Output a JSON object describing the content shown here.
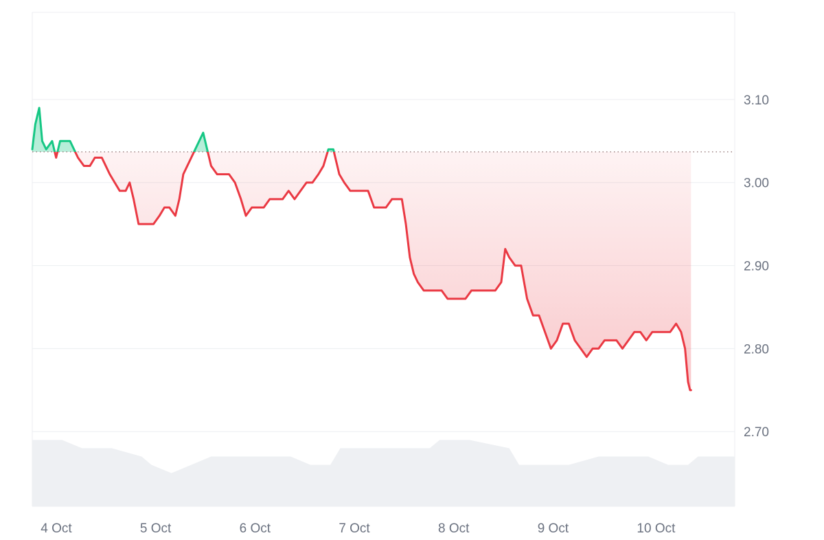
{
  "chart_data": {
    "type": "area",
    "title": "",
    "xlabel": "",
    "ylabel": "",
    "baseline": 3.037,
    "ylim": [
      2.61,
      3.205
    ],
    "y_ticks": [
      {
        "value": 3.1,
        "label": "3.10"
      },
      {
        "value": 3.0,
        "label": "3.00"
      },
      {
        "value": 2.9,
        "label": "2.90"
      },
      {
        "value": 2.8,
        "label": "2.80"
      },
      {
        "value": 2.7,
        "label": "2.70"
      }
    ],
    "x_ticks": [
      {
        "day": 0.05,
        "label": "4 Oct"
      },
      {
        "day": 1.05,
        "label": "5 Oct"
      },
      {
        "day": 2.05,
        "label": "6 Oct"
      },
      {
        "day": 3.05,
        "label": "7 Oct"
      },
      {
        "day": 4.05,
        "label": "8 Oct"
      },
      {
        "day": 5.05,
        "label": "9 Oct"
      },
      {
        "day": 6.05,
        "label": "10 Oct"
      }
    ],
    "xlim": [
      0,
      7.07
    ],
    "grid": true,
    "colors": {
      "above": "#16c784",
      "below": "#ea3943",
      "volume": "#eef0f3",
      "grid": "#eceef1",
      "baseline": "#8a6a6a"
    },
    "price": [
      [
        0.0,
        3.04
      ],
      [
        0.03,
        3.07
      ],
      [
        0.07,
        3.09
      ],
      [
        0.1,
        3.05
      ],
      [
        0.14,
        3.04
      ],
      [
        0.2,
        3.05
      ],
      [
        0.24,
        3.03
      ],
      [
        0.28,
        3.05
      ],
      [
        0.33,
        3.05
      ],
      [
        0.38,
        3.05
      ],
      [
        0.42,
        3.04
      ],
      [
        0.46,
        3.03
      ],
      [
        0.52,
        3.02
      ],
      [
        0.58,
        3.02
      ],
      [
        0.63,
        3.03
      ],
      [
        0.7,
        3.03
      ],
      [
        0.74,
        3.02
      ],
      [
        0.78,
        3.01
      ],
      [
        0.83,
        3.0
      ],
      [
        0.88,
        2.99
      ],
      [
        0.94,
        2.99
      ],
      [
        0.98,
        3.0
      ],
      [
        1.02,
        2.98
      ],
      [
        1.07,
        2.95
      ],
      [
        1.12,
        2.95
      ],
      [
        1.17,
        2.95
      ],
      [
        1.22,
        2.95
      ],
      [
        1.28,
        2.96
      ],
      [
        1.33,
        2.97
      ],
      [
        1.38,
        2.97
      ],
      [
        1.44,
        2.96
      ],
      [
        1.48,
        2.98
      ],
      [
        1.52,
        3.01
      ],
      [
        1.56,
        3.02
      ],
      [
        1.6,
        3.03
      ],
      [
        1.64,
        3.04
      ],
      [
        1.68,
        3.05
      ],
      [
        1.72,
        3.06
      ],
      [
        1.76,
        3.04
      ],
      [
        1.8,
        3.02
      ],
      [
        1.86,
        3.01
      ],
      [
        1.92,
        3.01
      ],
      [
        1.98,
        3.01
      ],
      [
        2.04,
        3.0
      ],
      [
        2.1,
        2.98
      ],
      [
        2.15,
        2.96
      ],
      [
        2.21,
        2.97
      ],
      [
        2.27,
        2.97
      ],
      [
        2.33,
        2.97
      ],
      [
        2.39,
        2.98
      ],
      [
        2.45,
        2.98
      ],
      [
        2.52,
        2.98
      ],
      [
        2.58,
        2.99
      ],
      [
        2.64,
        2.98
      ],
      [
        2.7,
        2.99
      ],
      [
        2.76,
        3.0
      ],
      [
        2.82,
        3.0
      ],
      [
        2.88,
        3.01
      ],
      [
        2.93,
        3.02
      ],
      [
        2.98,
        3.04
      ],
      [
        3.03,
        3.04
      ],
      [
        3.09,
        3.01
      ],
      [
        3.14,
        3.0
      ],
      [
        3.2,
        2.99
      ],
      [
        3.26,
        2.99
      ],
      [
        3.32,
        2.99
      ],
      [
        3.38,
        2.99
      ],
      [
        3.44,
        2.97
      ],
      [
        3.5,
        2.97
      ],
      [
        3.56,
        2.97
      ],
      [
        3.62,
        2.98
      ],
      [
        3.68,
        2.98
      ],
      [
        3.72,
        2.98
      ],
      [
        3.76,
        2.95
      ],
      [
        3.8,
        2.91
      ],
      [
        3.84,
        2.89
      ],
      [
        3.88,
        2.88
      ],
      [
        3.94,
        2.87
      ],
      [
        4.0,
        2.87
      ],
      [
        4.06,
        2.87
      ],
      [
        4.12,
        2.87
      ],
      [
        4.18,
        2.86
      ],
      [
        4.24,
        2.86
      ],
      [
        4.3,
        2.86
      ],
      [
        4.36,
        2.86
      ],
      [
        4.42,
        2.87
      ],
      [
        4.48,
        2.87
      ],
      [
        4.54,
        2.87
      ],
      [
        4.6,
        2.87
      ],
      [
        4.66,
        2.87
      ],
      [
        4.72,
        2.88
      ],
      [
        4.76,
        2.92
      ],
      [
        4.8,
        2.91
      ],
      [
        4.86,
        2.9
      ],
      [
        4.92,
        2.9
      ],
      [
        4.98,
        2.86
      ],
      [
        5.04,
        2.84
      ],
      [
        5.1,
        2.84
      ],
      [
        5.16,
        2.82
      ],
      [
        5.22,
        2.8
      ],
      [
        5.28,
        2.81
      ],
      [
        5.34,
        2.83
      ],
      [
        5.4,
        2.83
      ],
      [
        5.46,
        2.81
      ],
      [
        5.52,
        2.8
      ],
      [
        5.58,
        2.79
      ],
      [
        5.64,
        2.8
      ],
      [
        5.7,
        2.8
      ],
      [
        5.76,
        2.81
      ],
      [
        5.82,
        2.81
      ],
      [
        5.88,
        2.81
      ],
      [
        5.94,
        2.8
      ],
      [
        6.0,
        2.81
      ],
      [
        6.06,
        2.82
      ],
      [
        6.12,
        2.82
      ],
      [
        6.18,
        2.81
      ],
      [
        6.24,
        2.82
      ],
      [
        6.3,
        2.82
      ],
      [
        6.36,
        2.82
      ],
      [
        6.42,
        2.82
      ],
      [
        6.48,
        2.83
      ],
      [
        6.53,
        2.82
      ],
      [
        6.57,
        2.8
      ],
      [
        6.6,
        2.76
      ],
      [
        6.62,
        2.75
      ],
      [
        6.63,
        2.75
      ]
    ],
    "volume": [
      [
        0.0,
        2.69
      ],
      [
        0.1,
        2.69
      ],
      [
        0.3,
        2.69
      ],
      [
        0.5,
        2.68
      ],
      [
        0.8,
        2.68
      ],
      [
        1.1,
        2.67
      ],
      [
        1.2,
        2.66
      ],
      [
        1.4,
        2.65
      ],
      [
        1.6,
        2.66
      ],
      [
        1.8,
        2.67
      ],
      [
        2.0,
        2.67
      ],
      [
        2.3,
        2.67
      ],
      [
        2.6,
        2.67
      ],
      [
        2.8,
        2.66
      ],
      [
        3.0,
        2.66
      ],
      [
        3.1,
        2.68
      ],
      [
        3.4,
        2.68
      ],
      [
        3.7,
        2.68
      ],
      [
        4.0,
        2.68
      ],
      [
        4.1,
        2.69
      ],
      [
        4.4,
        2.69
      ],
      [
        4.8,
        2.68
      ],
      [
        4.9,
        2.66
      ],
      [
        5.1,
        2.66
      ],
      [
        5.4,
        2.66
      ],
      [
        5.7,
        2.67
      ],
      [
        6.0,
        2.67
      ],
      [
        6.2,
        2.67
      ],
      [
        6.4,
        2.66
      ],
      [
        6.6,
        2.66
      ],
      [
        6.7,
        2.67
      ],
      [
        7.07,
        2.67
      ]
    ]
  }
}
